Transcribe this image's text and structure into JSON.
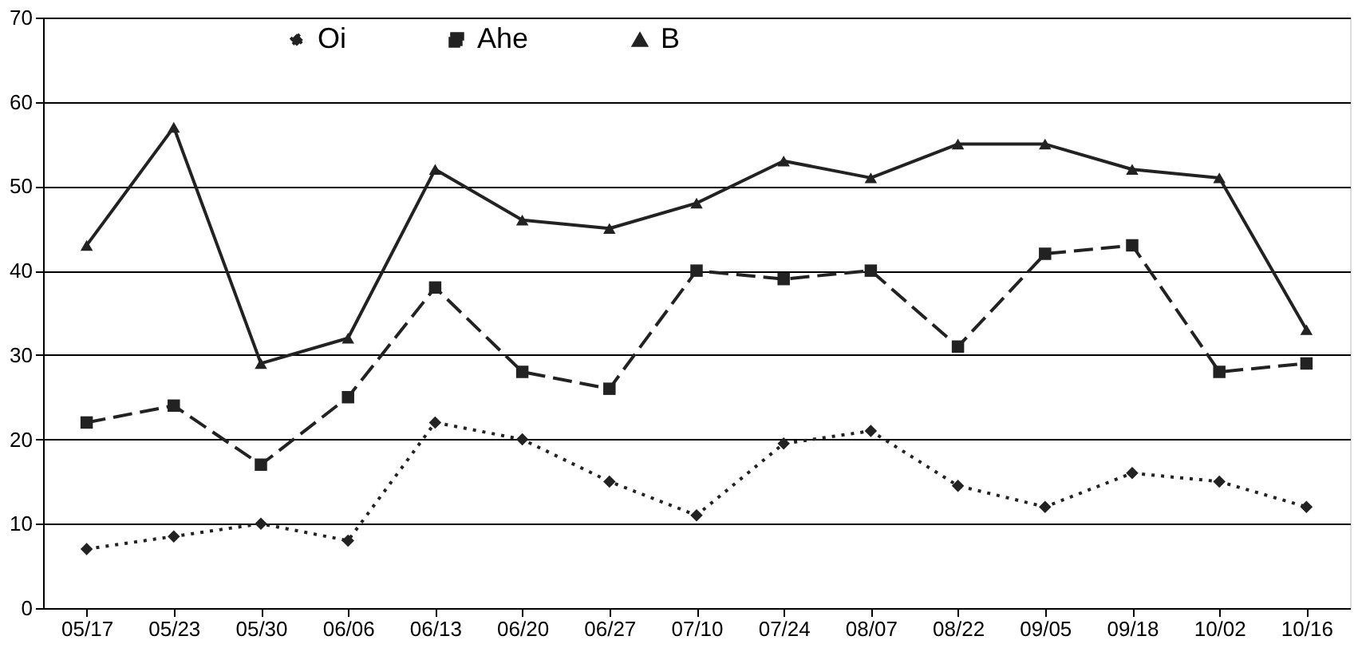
{
  "chart_data": {
    "type": "line",
    "categories": [
      "05/17",
      "05/23",
      "05/30",
      "06/06",
      "06/13",
      "06/20",
      "06/27",
      "07/10",
      "07/24",
      "08/07",
      "08/22",
      "09/05",
      "09/18",
      "10/02",
      "10/16"
    ],
    "series": [
      {
        "name": "Oi",
        "color": "#222222",
        "marker": "diamond",
        "line_style": "dotted",
        "values": [
          7,
          8.5,
          10,
          8,
          22,
          20,
          15,
          11,
          19.5,
          21,
          14.5,
          12,
          16,
          15,
          12
        ]
      },
      {
        "name": "Ahe",
        "color": "#222222",
        "marker": "square",
        "line_style": "dashed",
        "values": [
          22,
          24,
          17,
          25,
          38,
          28,
          26,
          40,
          39,
          40,
          31,
          42,
          43,
          28,
          29
        ]
      },
      {
        "name": "B",
        "color": "#222222",
        "marker": "triangle",
        "line_style": "solid",
        "values": [
          43,
          57,
          29,
          32,
          52,
          46,
          45,
          48,
          53,
          51,
          55,
          55,
          52,
          51,
          33
        ]
      }
    ],
    "ylim": [
      0,
      70
    ],
    "yticks": [
      0,
      10,
      20,
      30,
      40,
      50,
      60,
      70
    ],
    "grid": "y",
    "legend": "top"
  }
}
